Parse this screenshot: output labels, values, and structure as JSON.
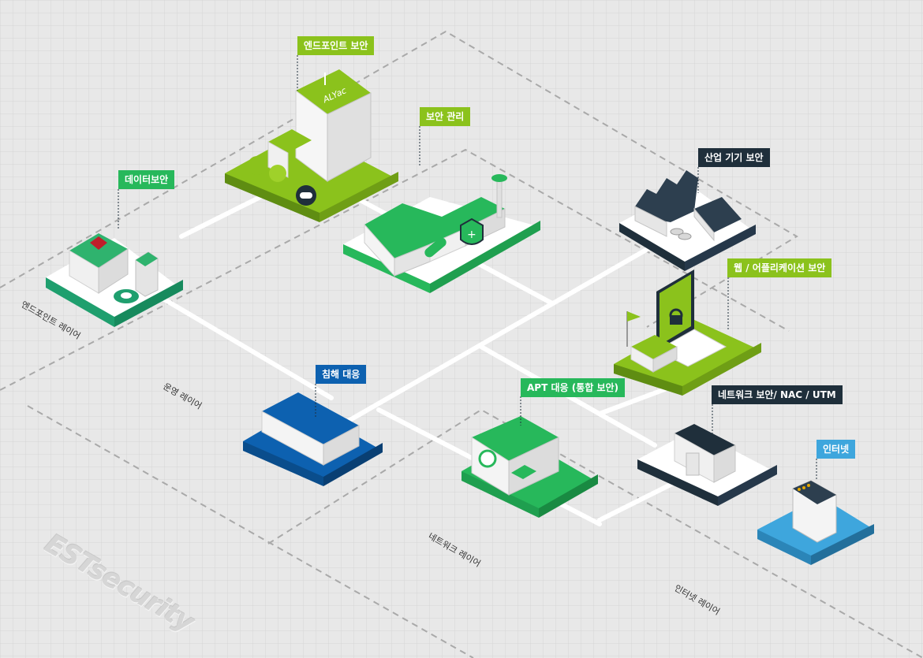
{
  "callouts": {
    "endpoint_security": "엔드포인트 보안",
    "security_management": "보안 관리",
    "data_security": "데이터보안",
    "industrial_security": "산업 기기 보안",
    "web_app_security": "웹 / 어플리케이션 보안",
    "intrusion_response": "침해 대응",
    "apt_response": "APT 대응 (통합 보안)",
    "network_security": "네트워크 보안/ NAC / UTM",
    "internet": "인터넷"
  },
  "layers": {
    "endpoint_layer": "엔드포인트 레이어",
    "operation_layer": "운영 레이어",
    "network_layer": "네트워크 레이어",
    "internet_layer": "인터넷 레이어"
  },
  "sign_text": "ALYac",
  "watermark": "ESTsecurity",
  "colors": {
    "lime": "#8bc21c",
    "green": "#27b85b",
    "dark": "#1f2f3b",
    "blue": "#0d61b0",
    "sky": "#3ea6dd",
    "white_platform": "#ffffff"
  }
}
